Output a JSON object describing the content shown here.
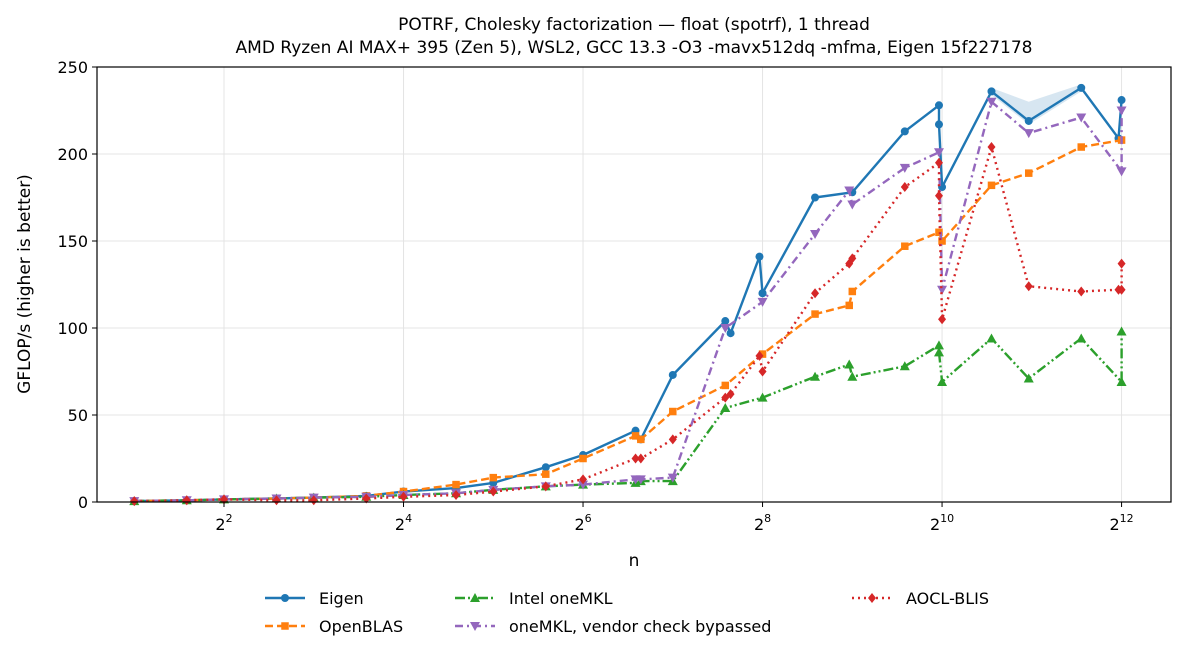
{
  "chart_data": {
    "type": "line",
    "title": "POTRF, Cholesky factorization — float (spotrf), 1 thread",
    "subtitle": "AMD Ryzen AI MAX+ 395 (Zen 5), WSL2, GCC 13.3 -O3 -mavx512dq -mfma, Eigen 15f227178",
    "xlabel": "n",
    "ylabel": "GFLOP/s (higher is better)",
    "x_scale": "log2",
    "xlim": [
      1.5,
      6000
    ],
    "ylim": [
      0,
      250
    ],
    "x_ticks": [
      {
        "base": "2",
        "exp": "2",
        "value": 4
      },
      {
        "base": "2",
        "exp": "4",
        "value": 16
      },
      {
        "base": "2",
        "exp": "6",
        "value": 64
      },
      {
        "base": "2",
        "exp": "8",
        "value": 256
      },
      {
        "base": "2",
        "exp": "10",
        "value": 1024
      },
      {
        "base": "2",
        "exp": "12",
        "value": 4096
      }
    ],
    "y_ticks": [
      0,
      50,
      100,
      150,
      200,
      250
    ],
    "grid": true,
    "legend_position": "below",
    "series": [
      {
        "name": "Eigen",
        "color": "#1f77b4",
        "dash": "",
        "marker": "circle",
        "x": [
          2,
          3,
          4,
          6,
          8,
          12,
          16,
          24,
          32,
          48,
          64,
          96,
          100,
          128,
          192,
          200,
          250,
          256,
          256,
          384,
          512,
          768,
          1000,
          1000,
          1024,
          1500,
          2000,
          3000,
          4000,
          4096
        ],
        "y": [
          0.5,
          1,
          1.5,
          2,
          2.5,
          3.5,
          6,
          8,
          11,
          20,
          27,
          41,
          36,
          73,
          104,
          97,
          141,
          120,
          120,
          175,
          178,
          213,
          228,
          217,
          181,
          236,
          219,
          238,
          209,
          231
        ],
        "band": {
          "x": [
            1500,
            2000,
            3000
          ],
          "lower": [
            234,
            217,
            236
          ],
          "upper": [
            238,
            230,
            240
          ]
        }
      },
      {
        "name": "OpenBLAS",
        "color": "#ff7f0e",
        "dash": "8,4",
        "marker": "square",
        "x": [
          2,
          3,
          4,
          6,
          8,
          12,
          16,
          24,
          32,
          48,
          64,
          96,
          100,
          128,
          192,
          256,
          384,
          500,
          512,
          768,
          1000,
          1024,
          1500,
          2000,
          3000,
          4096
        ],
        "y": [
          0.5,
          1,
          1.5,
          2,
          2.5,
          3.5,
          6,
          10,
          14,
          16,
          25,
          38,
          36,
          52,
          67,
          85,
          108,
          113,
          121,
          147,
          155,
          150,
          182,
          189,
          204,
          208
        ]
      },
      {
        "name": "Intel oneMKL",
        "color": "#2ca02c",
        "dash": "10,3,2,3,2,3",
        "marker": "triangle-up",
        "x": [
          2,
          3,
          4,
          6,
          8,
          12,
          16,
          24,
          32,
          48,
          64,
          96,
          100,
          128,
          192,
          256,
          384,
          500,
          512,
          768,
          1000,
          1000,
          1024,
          1500,
          2000,
          3000,
          4096,
          4096
        ],
        "y": [
          0.5,
          1,
          1.5,
          2,
          2.5,
          3,
          4,
          5,
          7,
          9,
          10,
          11,
          12,
          12,
          54,
          60,
          72,
          79,
          72,
          78,
          90,
          86,
          69,
          94,
          71,
          94,
          69,
          98
        ]
      },
      {
        "name": "oneMKL, vendor check bypassed",
        "color": "#9467bd",
        "dash": "8,4,2,4",
        "marker": "triangle-down",
        "x": [
          2,
          3,
          4,
          6,
          8,
          12,
          16,
          24,
          32,
          48,
          64,
          96,
          100,
          128,
          192,
          256,
          384,
          500,
          512,
          768,
          1000,
          1024,
          1500,
          2000,
          3000,
          4096,
          4096
        ],
        "y": [
          0.5,
          1,
          1.5,
          2,
          2.5,
          3,
          4,
          5,
          7,
          9,
          10,
          13,
          13,
          14,
          100,
          115,
          154,
          179,
          171,
          192,
          201,
          122,
          230,
          212,
          221,
          190,
          225
        ]
      },
      {
        "name": "AOCL-BLIS",
        "color": "#d62728",
        "dash": "2,4",
        "marker": "diamond",
        "x": [
          2,
          3,
          4,
          6,
          8,
          12,
          16,
          24,
          32,
          48,
          64,
          96,
          100,
          128,
          192,
          200,
          250,
          256,
          384,
          500,
          512,
          768,
          1000,
          1000,
          1024,
          1500,
          2000,
          3000,
          4000,
          4096,
          4096
        ],
        "y": [
          0.5,
          1,
          1.5,
          1,
          1,
          2,
          3,
          4,
          6,
          9,
          13,
          25,
          25,
          36,
          60,
          62,
          84,
          75,
          120,
          137,
          140,
          181,
          195,
          176,
          105,
          204,
          124,
          121,
          122,
          122,
          137
        ]
      }
    ]
  }
}
